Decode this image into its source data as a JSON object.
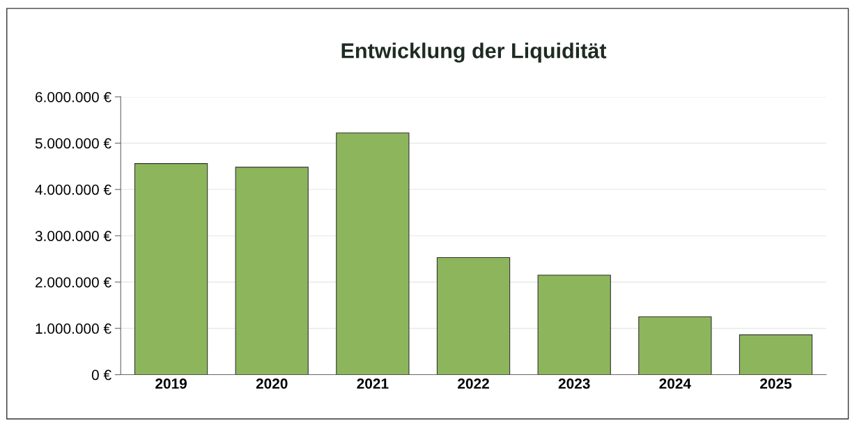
{
  "chart_data": {
    "type": "bar",
    "title": "Entwicklung der Liquidität",
    "categories": [
      "2019",
      "2020",
      "2021",
      "2022",
      "2023",
      "2024",
      "2025"
    ],
    "values": [
      4560000,
      4480000,
      5220000,
      2530000,
      2150000,
      1250000,
      860000
    ],
    "color": "#8db65c",
    "ylim": [
      0,
      6000000
    ],
    "yticks": [
      {
        "value": 0,
        "label": "0 €"
      },
      {
        "value": 1000000,
        "label": "1.000.000 €"
      },
      {
        "value": 2000000,
        "label": "2.000.000 €"
      },
      {
        "value": 3000000,
        "label": "3.000.000 €"
      },
      {
        "value": 4000000,
        "label": "4.000.000 €"
      },
      {
        "value": 5000000,
        "label": "5.000.000 €"
      },
      {
        "value": 6000000,
        "label": "6.000.000 €"
      }
    ],
    "grid": "y"
  }
}
